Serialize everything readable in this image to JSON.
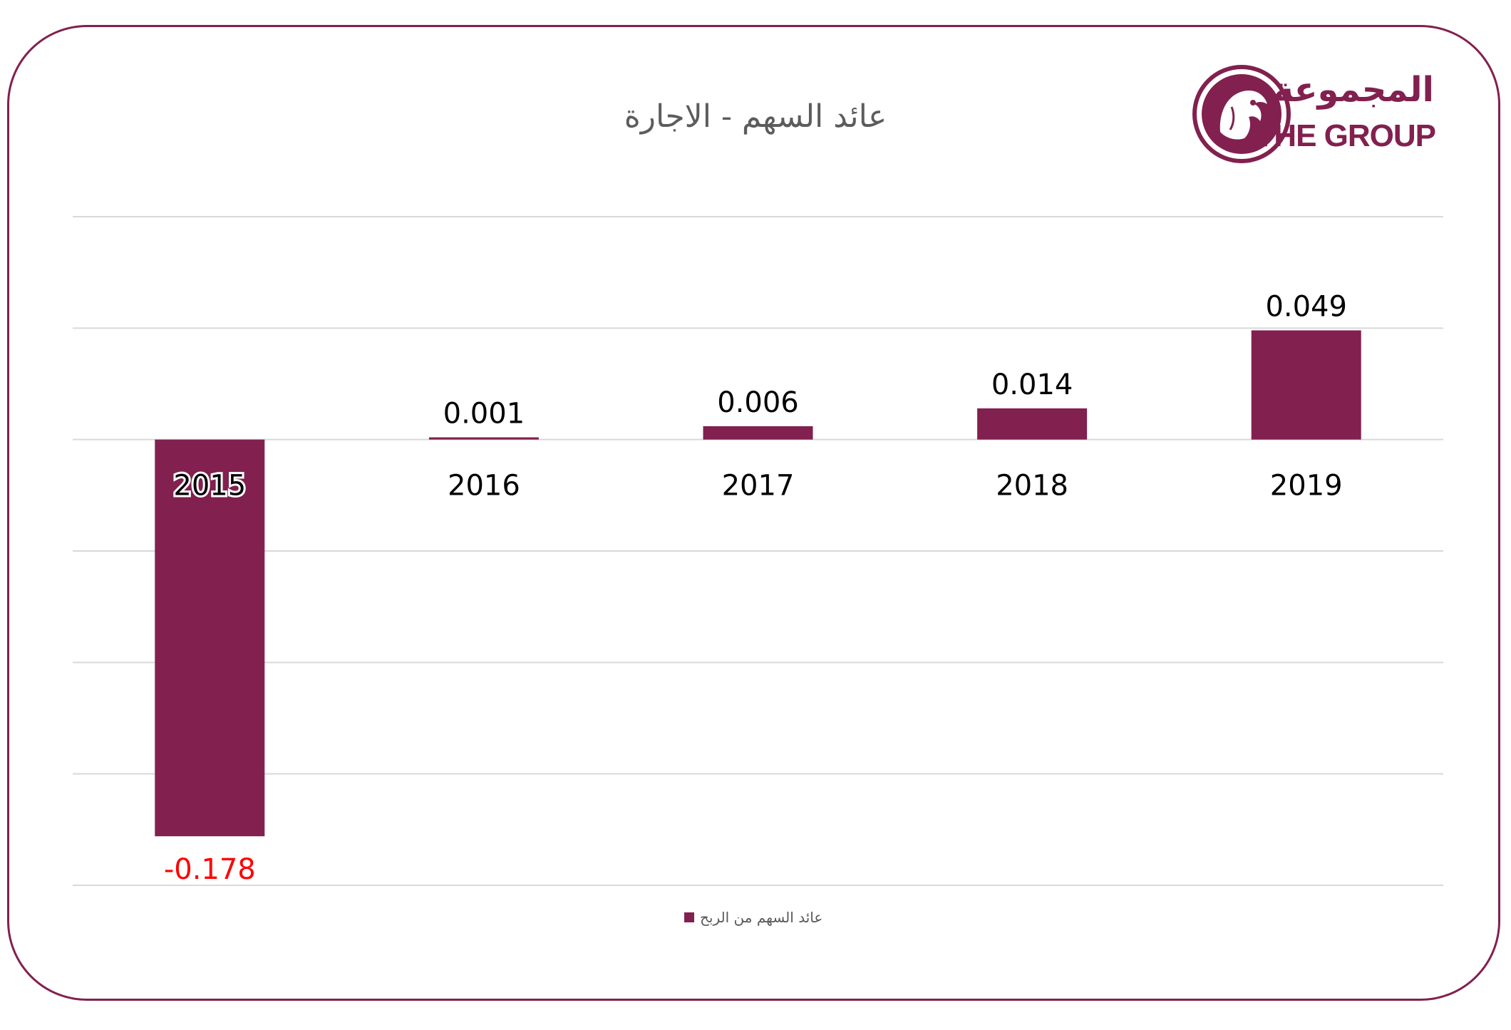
{
  "title": "عائد السهم -  الاجارة",
  "logo": {
    "arabic": "المجموعة",
    "english": "THE GROUP",
    "emblem_icon": "falcon-emblem-icon"
  },
  "colors": {
    "bar": "#82204f",
    "frame": "#82204f",
    "negative_label": "#ff0000",
    "label": "#000000",
    "grid": "#d9d9d9"
  },
  "chart_data": {
    "type": "bar",
    "categories": [
      "2015",
      "2016",
      "2017",
      "2018",
      "2019"
    ],
    "series": [
      {
        "name": "عائد السهم من الربح",
        "values": [
          -0.178,
          0.001,
          0.006,
          0.014,
          0.049
        ]
      }
    ],
    "data_labels": [
      "-0.178",
      "0.001",
      "0.006",
      "0.014",
      "0.049"
    ],
    "ylim": [
      -0.2,
      0.1
    ],
    "gridlines": [
      -0.2,
      -0.15,
      -0.1,
      -0.05,
      0,
      0.05,
      0.1
    ],
    "grid": true,
    "legend_position": "bottom",
    "title": "عائد السهم -  الاجارة",
    "xlabel": "",
    "ylabel": ""
  }
}
